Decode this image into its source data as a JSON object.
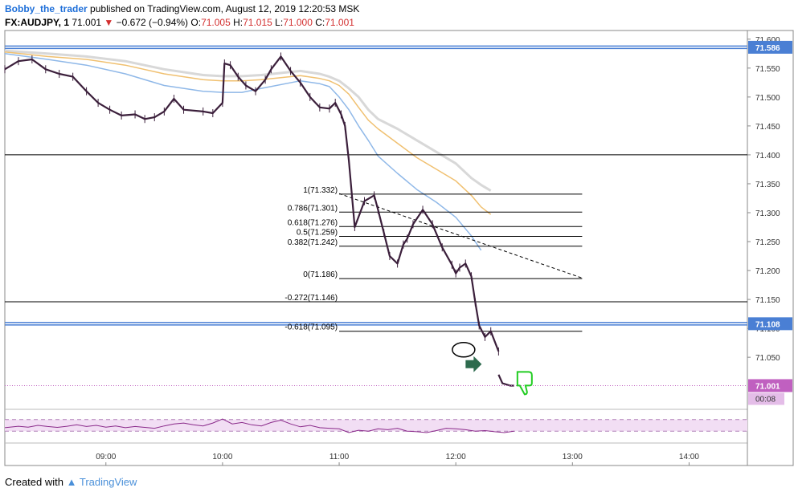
{
  "header": {
    "author": "Bobby_the_trader",
    "published": "published on TradingView.com, August 12, 2019 12:20:53 MSK",
    "symbol": "FX:AUDJPY, 1",
    "last": "71.001",
    "change": "−0.672 (−0.94%)",
    "o_label": "O:",
    "o_value": "71.005",
    "h_label": "H:",
    "h_value": "71.015",
    "l_label": "L:",
    "l_value": "71.000",
    "c_label": "C:",
    "c_value": "71.001"
  },
  "footer": {
    "created_with": "Created with",
    "brand": "TradingView"
  },
  "colors": {
    "price": "#3b1f3b",
    "ema_blue": "#8fb8e8",
    "ema_orange": "#f0c070",
    "ema_gray": "#d8d8d8",
    "level_blue": "#4a7fd4",
    "last_price": "#c060c0",
    "rsi_band": "#f2def4",
    "arrow": "#2e6b4e",
    "thumb": "#22cc22"
  },
  "chart_data": {
    "type": "line",
    "title": "FX:AUDJPY, 1",
    "ylim": [
      70.96,
      71.615
    ],
    "y_ticks": [
      "71.600",
      "71.550",
      "71.500",
      "71.450",
      "71.400",
      "71.350",
      "71.300",
      "71.250",
      "71.200",
      "71.150",
      "71.100",
      "71.050"
    ],
    "x_ticks": [
      "09:00",
      "10:00",
      "11:00",
      "12:00",
      "13:00",
      "14:00"
    ],
    "x_tick_minutes": [
      540,
      600,
      660,
      720,
      780,
      840
    ],
    "xlim": [
      488,
      870
    ],
    "price": {
      "name": "AUDJPY",
      "x": [
        488,
        495,
        502,
        509,
        516,
        523,
        530,
        536,
        542,
        548,
        555,
        560,
        565,
        570,
        575,
        580,
        590,
        595,
        600,
        601,
        604,
        608,
        612,
        617,
        622,
        625,
        630,
        635,
        640,
        645,
        650,
        655,
        658,
        661,
        663,
        665,
        668,
        673,
        678,
        680,
        683,
        686,
        690,
        693,
        695,
        698,
        703,
        708,
        713,
        718,
        720,
        722,
        725,
        728,
        730,
        732,
        735,
        738,
        742
      ],
      "values": [
        71.548,
        71.562,
        71.565,
        71.548,
        71.54,
        71.535,
        71.51,
        71.49,
        71.478,
        71.468,
        71.47,
        71.462,
        71.465,
        71.475,
        71.497,
        71.478,
        71.475,
        71.472,
        71.49,
        71.558,
        71.555,
        71.535,
        71.52,
        71.51,
        71.53,
        71.548,
        71.57,
        71.545,
        71.525,
        71.5,
        71.482,
        71.48,
        71.49,
        71.47,
        71.45,
        71.39,
        71.275,
        71.32,
        71.33,
        71.305,
        71.265,
        71.225,
        71.212,
        71.245,
        71.255,
        71.28,
        71.305,
        71.28,
        71.24,
        71.21,
        71.195,
        71.205,
        71.212,
        71.19,
        71.145,
        71.105,
        71.085,
        71.095,
        71.06
      ]
    },
    "price_tail": {
      "x": [
        742,
        744,
        746,
        748,
        750
      ],
      "values": [
        71.02,
        71.005,
        71.003,
        71.001,
        71.001
      ]
    },
    "ema_blue": {
      "x": [
        488,
        510,
        530,
        550,
        570,
        590,
        600,
        610,
        620,
        640,
        650,
        655,
        660,
        665,
        670,
        675,
        680,
        690,
        700,
        710,
        720,
        728,
        733
      ],
      "values": [
        71.575,
        71.565,
        71.555,
        71.54,
        71.52,
        71.51,
        71.508,
        71.508,
        71.515,
        71.528,
        71.523,
        71.518,
        71.5,
        71.478,
        71.45,
        71.425,
        71.398,
        71.368,
        71.34,
        71.318,
        71.292,
        71.26,
        71.235
      ]
    },
    "ema_orange": {
      "x": [
        488,
        510,
        530,
        550,
        570,
        590,
        600,
        610,
        620,
        640,
        650,
        655,
        660,
        665,
        670,
        675,
        680,
        690,
        700,
        710,
        720,
        728,
        733,
        738
      ],
      "values": [
        71.578,
        71.57,
        71.565,
        71.555,
        71.54,
        71.53,
        71.528,
        71.528,
        71.53,
        71.537,
        71.532,
        71.528,
        71.52,
        71.505,
        71.482,
        71.46,
        71.445,
        71.42,
        71.395,
        71.375,
        71.355,
        71.33,
        71.31,
        71.297
      ]
    },
    "ema_gray": {
      "x": [
        488,
        510,
        530,
        550,
        570,
        590,
        600,
        610,
        620,
        640,
        650,
        655,
        660,
        665,
        670,
        675,
        680,
        690,
        700,
        710,
        720,
        728,
        733,
        738
      ],
      "values": [
        71.58,
        71.575,
        71.57,
        71.562,
        71.548,
        71.538,
        71.536,
        71.536,
        71.538,
        71.545,
        71.54,
        71.535,
        71.528,
        71.515,
        71.5,
        71.478,
        71.462,
        71.445,
        71.425,
        71.405,
        71.385,
        71.36,
        71.348,
        71.338
      ]
    },
    "horizontal_levels": [
      {
        "price": 71.586,
        "label": "71.586",
        "style": "blue"
      },
      {
        "price": 71.4,
        "style": "black"
      },
      {
        "price": 71.146,
        "style": "black"
      },
      {
        "price": 71.108,
        "label": "71.108",
        "style": "blue"
      }
    ],
    "fibonacci": [
      {
        "price": 71.332,
        "label": "1(71.332)"
      },
      {
        "price": 71.301,
        "label": "0.786(71.301)"
      },
      {
        "price": 71.276,
        "label": "0.618(71.276)"
      },
      {
        "price": 71.259,
        "label": "0.5(71.259)"
      },
      {
        "price": 71.242,
        "label": "0.382(71.242)"
      },
      {
        "price": 71.186,
        "label": "0(71.186)"
      },
      {
        "price": 71.146,
        "label": "-0.272(71.146)"
      },
      {
        "price": 71.095,
        "label": "-0.618(71.095)"
      }
    ],
    "fib_x_range": [
      660,
      785
    ],
    "trendline": {
      "x": [
        660,
        785
      ],
      "values": [
        71.333,
        71.187
      ]
    },
    "last_price": {
      "price": 71.001,
      "label": "71.001",
      "countdown": "00:08"
    },
    "rsi": {
      "x": [
        488,
        495,
        500,
        505,
        510,
        515,
        520,
        525,
        530,
        535,
        540,
        545,
        550,
        555,
        560,
        565,
        570,
        575,
        580,
        585,
        590,
        595,
        600,
        605,
        610,
        615,
        620,
        625,
        630,
        635,
        640,
        645,
        650,
        655,
        660,
        665,
        670,
        675,
        680,
        685,
        690,
        695,
        700,
        705,
        710,
        715,
        720,
        725,
        730,
        735,
        740,
        745,
        750
      ],
      "values": [
        42,
        47,
        44,
        50,
        46,
        43,
        47,
        52,
        46,
        50,
        44,
        48,
        42,
        46,
        43,
        40,
        48,
        55,
        58,
        52,
        48,
        58,
        72,
        55,
        60,
        52,
        48,
        60,
        68,
        55,
        45,
        50,
        42,
        40,
        38,
        25,
        33,
        30,
        38,
        35,
        40,
        30,
        28,
        25,
        32,
        40,
        38,
        35,
        30,
        32,
        28,
        25,
        30
      ],
      "band": [
        70,
        30
      ],
      "ylim": [
        0,
        100
      ]
    },
    "markers": [
      {
        "type": "circle",
        "x": 724,
        "price": 71.063
      },
      {
        "type": "arrow-right",
        "x": 730,
        "price": 71.038
      },
      {
        "type": "thumbs-down",
        "x": 755,
        "price": 71.008
      }
    ]
  }
}
